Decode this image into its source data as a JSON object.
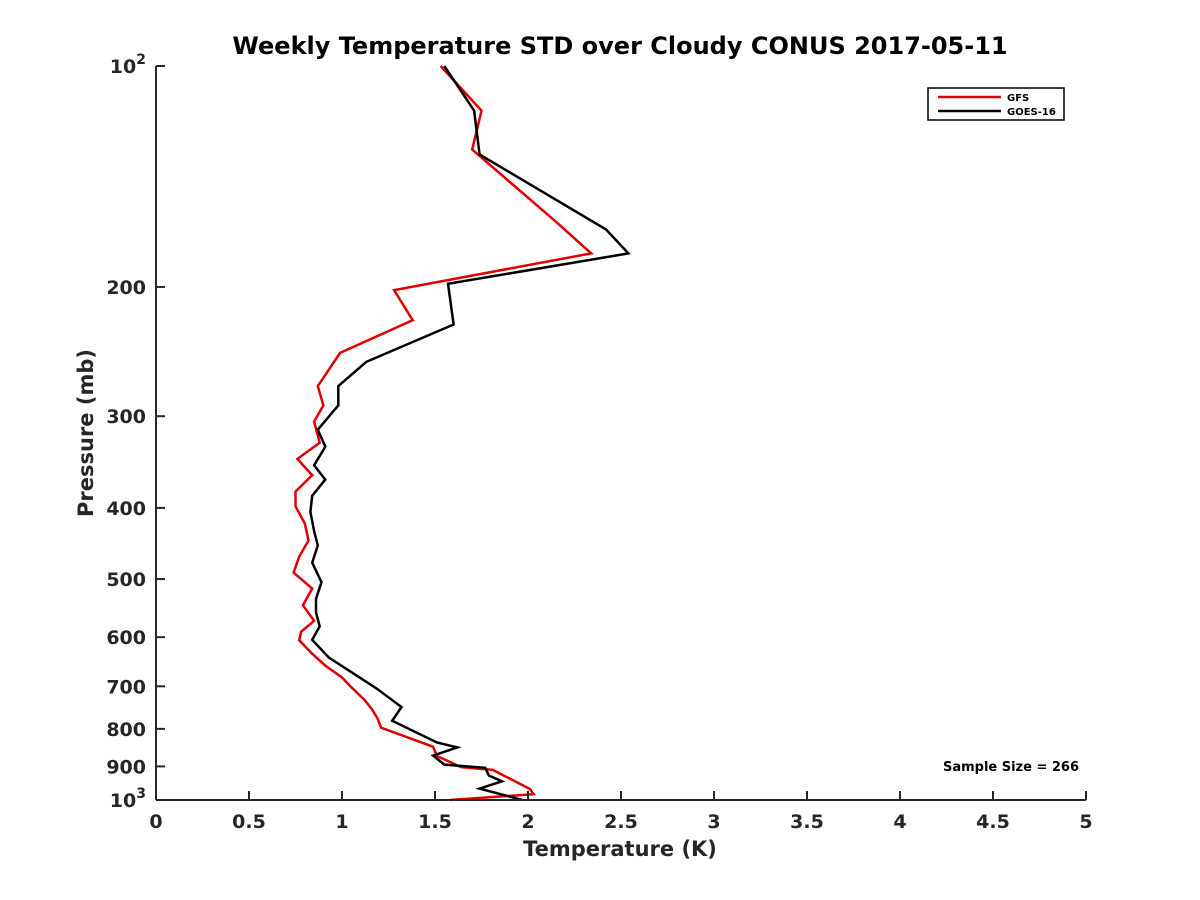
{
  "chart_data": {
    "type": "line",
    "title": "Weekly Temperature STD over Cloudy CONUS 2017-05-11",
    "xlabel": "Temperature (K)",
    "ylabel": "Pressure (mb)",
    "xlim": [
      0,
      5
    ],
    "ylim": [
      100,
      1000
    ],
    "y_scale": "log",
    "y_reversed": true,
    "grid": false,
    "legend_position": "top-right",
    "x_ticks": [
      0,
      0.5,
      1,
      1.5,
      2,
      2.5,
      3,
      3.5,
      4,
      4.5,
      5
    ],
    "x_tick_labels": [
      "0",
      "0.5",
      "1",
      "1.5",
      "2",
      "2.5",
      "3",
      "3.5",
      "4",
      "4.5",
      "5"
    ],
    "y_ticks": [
      100,
      200,
      300,
      400,
      500,
      600,
      700,
      800,
      900,
      1000
    ],
    "y_tick_labels": [
      {
        "base": "10",
        "exp": "2"
      },
      {
        "base": "200",
        "exp": ""
      },
      {
        "base": "300",
        "exp": ""
      },
      {
        "base": "400",
        "exp": ""
      },
      {
        "base": "500",
        "exp": ""
      },
      {
        "base": "600",
        "exp": ""
      },
      {
        "base": "700",
        "exp": ""
      },
      {
        "base": "800",
        "exp": ""
      },
      {
        "base": "900",
        "exp": ""
      },
      {
        "base": "10",
        "exp": "3"
      }
    ],
    "annotation": "Sample Size = 266",
    "series": [
      {
        "name": "GFS",
        "color": "#e00000",
        "points": [
          [
            1.53,
            100
          ],
          [
            1.75,
            115
          ],
          [
            1.7,
            130
          ],
          [
            2.15,
            163
          ],
          [
            2.34,
            180
          ],
          [
            1.28,
            202
          ],
          [
            1.38,
            222
          ],
          [
            0.99,
            246
          ],
          [
            0.87,
            273
          ],
          [
            0.9,
            290
          ],
          [
            0.85,
            305
          ],
          [
            0.88,
            326
          ],
          [
            0.76,
            343
          ],
          [
            0.84,
            361
          ],
          [
            0.75,
            380
          ],
          [
            0.75,
            398
          ],
          [
            0.8,
            420
          ],
          [
            0.82,
            443
          ],
          [
            0.77,
            466
          ],
          [
            0.74,
            490
          ],
          [
            0.84,
            515
          ],
          [
            0.79,
            543
          ],
          [
            0.85,
            570
          ],
          [
            0.78,
            590
          ],
          [
            0.77,
            606
          ],
          [
            0.84,
            632
          ],
          [
            0.91,
            656
          ],
          [
            1.0,
            681
          ],
          [
            1.05,
            702
          ],
          [
            1.12,
            730
          ],
          [
            1.16,
            752
          ],
          [
            1.19,
            773
          ],
          [
            1.21,
            797
          ],
          [
            1.49,
            846
          ],
          [
            1.51,
            871
          ],
          [
            1.64,
            902
          ],
          [
            1.81,
            910
          ],
          [
            1.93,
            943
          ],
          [
            2.01,
            966
          ],
          [
            2.03,
            982
          ],
          [
            1.58,
            1000
          ]
        ]
      },
      {
        "name": "GOES-16",
        "color": "#000000",
        "points": [
          [
            1.55,
            100
          ],
          [
            1.71,
            115
          ],
          [
            1.74,
            132
          ],
          [
            2.42,
            167
          ],
          [
            2.54,
            180
          ],
          [
            1.57,
            198
          ],
          [
            1.6,
            225
          ],
          [
            1.13,
            253
          ],
          [
            0.98,
            273
          ],
          [
            0.98,
            290
          ],
          [
            0.87,
            313
          ],
          [
            0.91,
            330
          ],
          [
            0.85,
            350
          ],
          [
            0.91,
            366
          ],
          [
            0.84,
            385
          ],
          [
            0.83,
            405
          ],
          [
            0.85,
            430
          ],
          [
            0.87,
            450
          ],
          [
            0.84,
            475
          ],
          [
            0.89,
            505
          ],
          [
            0.86,
            532
          ],
          [
            0.86,
            555
          ],
          [
            0.88,
            580
          ],
          [
            0.84,
            605
          ],
          [
            0.93,
            640
          ],
          [
            1.06,
            672
          ],
          [
            1.19,
            706
          ],
          [
            1.32,
            747
          ],
          [
            1.27,
            780
          ],
          [
            1.51,
            835
          ],
          [
            1.62,
            848
          ],
          [
            1.49,
            870
          ],
          [
            1.55,
            895
          ],
          [
            1.77,
            904
          ],
          [
            1.79,
            926
          ],
          [
            1.86,
            943
          ],
          [
            1.74,
            965
          ],
          [
            1.97,
            1000
          ]
        ]
      }
    ]
  }
}
